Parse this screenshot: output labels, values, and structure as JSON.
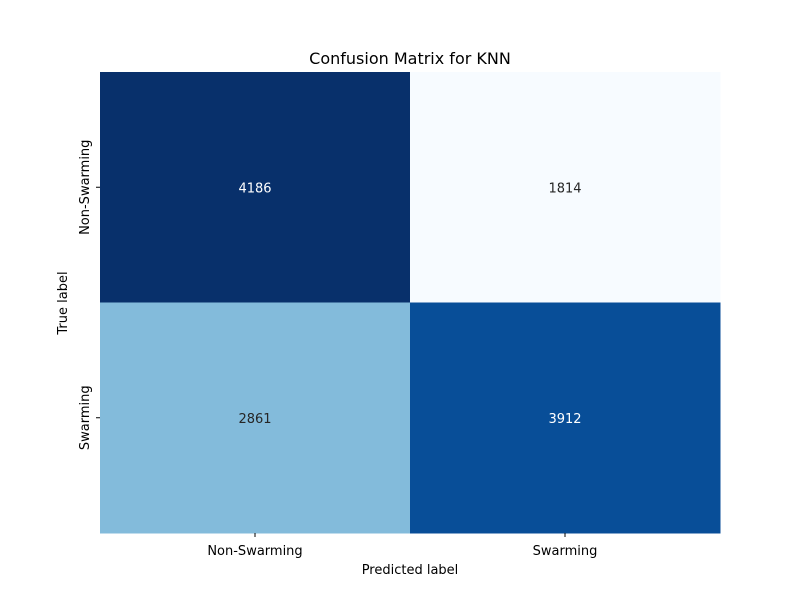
{
  "chart_data": {
    "type": "heatmap",
    "title": "Confusion Matrix for KNN",
    "xlabel": "Predicted label",
    "ylabel": "True label",
    "x_categories": [
      "Non-Swarming",
      "Swarming"
    ],
    "y_categories": [
      "Non-Swarming",
      "Swarming"
    ],
    "values": [
      [
        4186,
        1814
      ],
      [
        2861,
        3912
      ]
    ],
    "colormap": "Blues",
    "vmin": 1814,
    "vmax": 4186,
    "colorbar": false,
    "annotations": true
  }
}
